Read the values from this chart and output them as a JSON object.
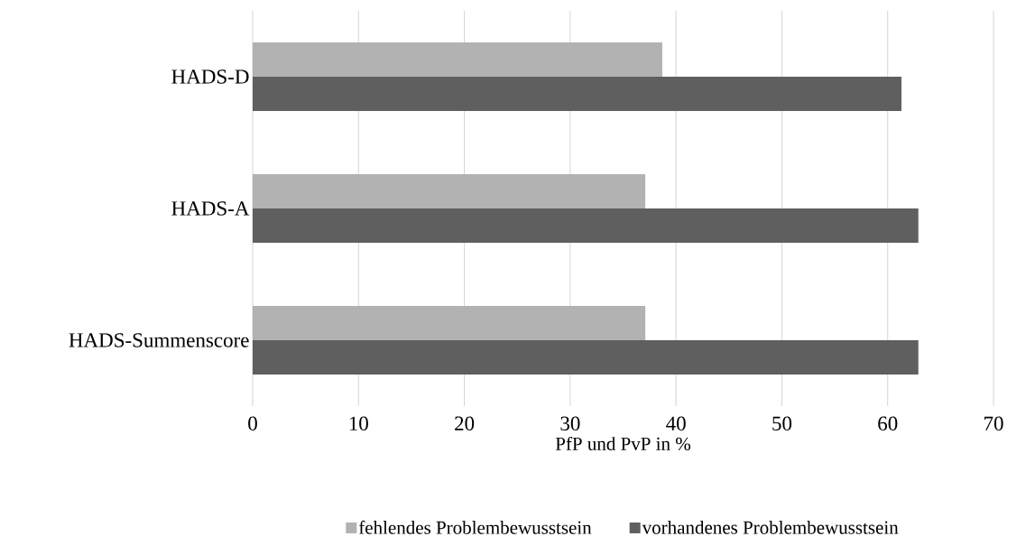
{
  "chart_data": {
    "type": "bar",
    "orientation": "horizontal",
    "categories": [
      "HADS-D",
      "HADS-A",
      "HADS-Summenscore"
    ],
    "series": [
      {
        "name": "fehlendes Problembewusstsein",
        "color": "#b2b2b2",
        "values": [
          38.7,
          37.1,
          37.1
        ]
      },
      {
        "name": "vorhandenes Problembewusstsein",
        "color": "#5f5f5f",
        "values": [
          61.3,
          62.9,
          62.9
        ]
      }
    ],
    "xlabel": "PfP und PvP in %",
    "xlim": [
      0,
      70
    ],
    "xticks": [
      0,
      10,
      20,
      30,
      40,
      50,
      60,
      70
    ],
    "grid": "x",
    "legend": "bottom"
  }
}
